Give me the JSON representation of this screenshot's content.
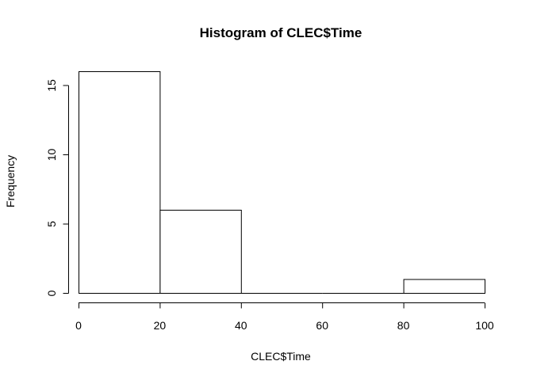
{
  "chart_data": {
    "type": "bar",
    "title": "Histogram of CLEC$Time",
    "xlabel": "CLEC$Time",
    "ylabel": "Frequency",
    "bins": [
      {
        "start": 0,
        "end": 20,
        "count": 16
      },
      {
        "start": 20,
        "end": 40,
        "count": 6
      },
      {
        "start": 40,
        "end": 60,
        "count": 0
      },
      {
        "start": 60,
        "end": 80,
        "count": 0
      },
      {
        "start": 80,
        "end": 100,
        "count": 1
      }
    ],
    "xlim": [
      0,
      100
    ],
    "ylim": [
      0,
      16
    ],
    "x_ticks": [
      {
        "value": 0,
        "label": "0"
      },
      {
        "value": 20,
        "label": "20"
      },
      {
        "value": 40,
        "label": "40"
      },
      {
        "value": 60,
        "label": "60"
      },
      {
        "value": 80,
        "label": "80"
      },
      {
        "value": 100,
        "label": "100"
      }
    ],
    "y_ticks": [
      {
        "value": 0,
        "label": "0"
      },
      {
        "value": 5,
        "label": "5"
      },
      {
        "value": 10,
        "label": "10"
      },
      {
        "value": 15,
        "label": "15"
      }
    ],
    "grid": false,
    "bar_fill": "#ffffff",
    "bar_stroke": "#000000"
  }
}
